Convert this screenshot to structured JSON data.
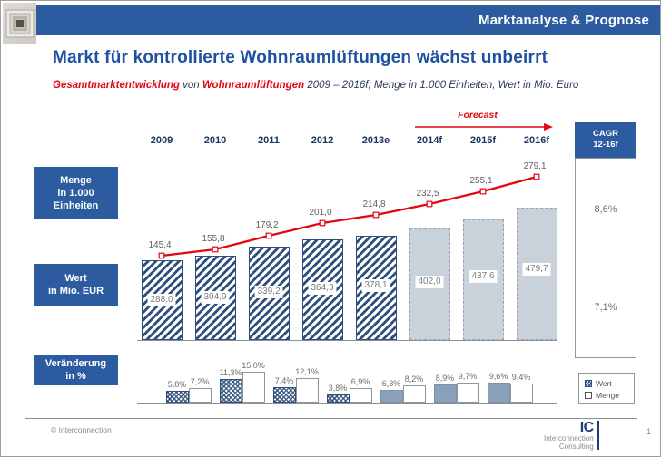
{
  "header": {
    "title": "Marktanalyse & Prognose"
  },
  "slide": {
    "title": "Markt für kontrollierte Wohnraumlüftungen wächst unbeirrt",
    "subtitle": {
      "highlight1": "Gesamtmarktentwicklung",
      "mid1": " von ",
      "highlight2": "Wohnraumlüftungen",
      "rest": " 2009 – 2016f; Menge in 1.000 Einheiten, Wert in Mio. Euro"
    }
  },
  "row_labels": {
    "menge": [
      "Menge",
      "in 1.000",
      "Einheiten"
    ],
    "wert": [
      "Wert",
      "in Mio. EUR"
    ],
    "change": [
      "Veränderung",
      "in %"
    ]
  },
  "footer": {
    "copyright": "© Interconnection",
    "logo_ic": "IC",
    "logo_line1": "Interconnection",
    "logo_line2": "Consulting",
    "page_number": "1"
  },
  "chart_data": {
    "type": "combo",
    "title": "Gesamtmarktentwicklung von Wohnraumlüftungen 2009 – 2016f",
    "categories": [
      "2009",
      "2010",
      "2011",
      "2012",
      "2013e",
      "2014f",
      "2015f",
      "2016f"
    ],
    "forecast_label": "Forecast",
    "forecast_start_category": "2014f",
    "line_color": "#e30613",
    "series": [
      {
        "name": "Menge",
        "type": "line",
        "unit": "in 1.000 Einheiten",
        "values": [
          145.4,
          155.8,
          179.2,
          201.0,
          214.8,
          232.5,
          255.1,
          279.1
        ],
        "labels": [
          "145,4",
          "155,8",
          "179,2",
          "201,0",
          "214,8",
          "232,5",
          "255,1",
          "279,1"
        ]
      },
      {
        "name": "Wert",
        "type": "bar",
        "unit": "in Mio. EUR",
        "values": [
          288.0,
          304.9,
          339.2,
          364.3,
          378.1,
          402.0,
          437.6,
          479.7
        ],
        "labels": [
          "288,0",
          "304,9",
          "339,2",
          "364,3",
          "378,1",
          "402,0",
          "437,6",
          "479,7"
        ]
      }
    ],
    "change_pct": {
      "label": "Veränderung in %",
      "categories": [
        "2010",
        "2011",
        "2012",
        "2013e",
        "2014f",
        "2015f",
        "2016f"
      ],
      "series": [
        {
          "name": "Wert",
          "values": [
            5.8,
            11.3,
            7.4,
            3.8,
            6.3,
            8.9,
            9.6
          ],
          "labels": [
            "5,8%",
            "11,3%",
            "7,4%",
            "3,8%",
            "6,3%",
            "8,9%",
            "9,6%"
          ]
        },
        {
          "name": "Menge",
          "values": [
            7.2,
            15.0,
            12.1,
            6.9,
            8.2,
            9.7,
            9.4
          ],
          "labels": [
            "7,2%",
            "15,0%",
            "12,1%",
            "6,9%",
            "8,2%",
            "9,7%",
            "9,4%"
          ]
        }
      ]
    },
    "cagr": {
      "title_line1": "CAGR",
      "title_line2": "12-16f",
      "menge": "8,6%",
      "wert": "7,1%"
    },
    "legend": [
      {
        "label": "Wert",
        "swatch": "hatched"
      },
      {
        "label": "Menge",
        "swatch": "white"
      }
    ]
  }
}
